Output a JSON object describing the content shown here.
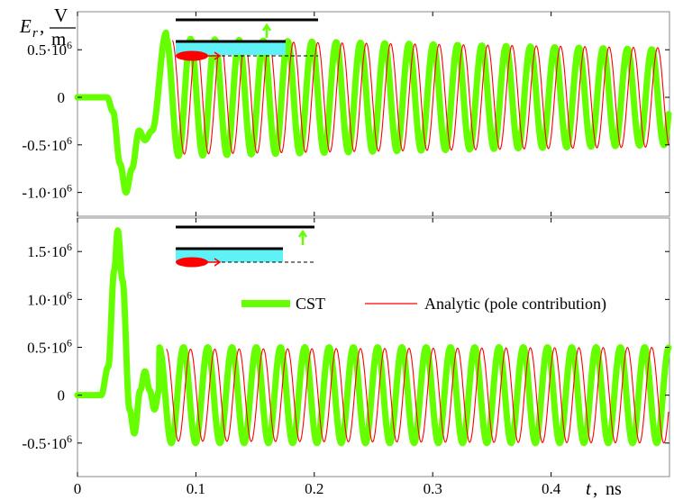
{
  "chart_data": [
    {
      "type": "line",
      "title": "",
      "ylabel": "E_r, V/m",
      "ylabel_parts": {
        "symbol": "E",
        "subscript": "r",
        "unit_num": "V",
        "unit_den": "m",
        "comma": ","
      },
      "xlim": [
        0,
        0.5
      ],
      "ylim": [
        -1.25,
        0.9
      ],
      "yticks": [
        {
          "value": 0.5,
          "mant": "0.5",
          "exp": "6"
        },
        {
          "value": 0,
          "mant": "0",
          "exp": ""
        },
        {
          "value": -0.5,
          "mant": "-0.5",
          "exp": "6"
        },
        {
          "value": -1.0,
          "mant": "-1.0",
          "exp": "6"
        }
      ],
      "series": [
        {
          "name": "CST",
          "color": "#66ff00",
          "keyframes": [
            [
              0,
              0
            ],
            [
              0.025,
              0
            ],
            [
              0.03,
              -0.15
            ],
            [
              0.036,
              -0.7
            ],
            [
              0.041,
              -1.0
            ],
            [
              0.046,
              -0.75
            ],
            [
              0.052,
              -0.35
            ],
            [
              0.057,
              -0.45
            ],
            [
              0.063,
              -0.35
            ],
            [
              0.075,
              0.68
            ]
          ],
          "osc": {
            "t0": 0.075,
            "t1": 0.5,
            "period": 0.0205,
            "amp_start": 0.62,
            "amp_end": 0.5,
            "offset": 0.0
          }
        },
        {
          "name": "Analytic (pole contribution)",
          "color": "#ff0000",
          "keyframes": [],
          "osc": {
            "t0": 0.08,
            "t1": 0.5,
            "period": 0.0205,
            "amp_start": 0.6,
            "amp_end": 0.52,
            "offset": 0.0
          }
        }
      ],
      "inset": {
        "desc": "waveguide geometry schematic"
      }
    },
    {
      "type": "line",
      "title": "",
      "xlabel": "t, ns",
      "xlabel_parts": {
        "symbol": "t",
        "comma": ",",
        "unit": "ns"
      },
      "xlim": [
        0,
        0.5
      ],
      "ylim": [
        -0.85,
        1.85
      ],
      "xticks": [
        0,
        0.1,
        0.2,
        0.3,
        0.4
      ],
      "xtick_labels": [
        "0",
        "0.1",
        "0.2",
        "0.3",
        "0.4"
      ],
      "yticks": [
        {
          "value": 1.5,
          "mant": "1.5",
          "exp": "6"
        },
        {
          "value": 1.0,
          "mant": "1.0",
          "exp": "6"
        },
        {
          "value": 0.5,
          "mant": "0.5",
          "exp": "6"
        },
        {
          "value": 0,
          "mant": "0",
          "exp": ""
        },
        {
          "value": -0.5,
          "mant": "-0.5",
          "exp": "6"
        }
      ],
      "series": [
        {
          "name": "CST",
          "color": "#66ff00",
          "keyframes": [
            [
              0,
              0
            ],
            [
              0.02,
              0
            ],
            [
              0.026,
              0.3
            ],
            [
              0.031,
              1.3
            ],
            [
              0.034,
              1.72
            ],
            [
              0.038,
              1.2
            ],
            [
              0.044,
              -0.15
            ],
            [
              0.048,
              -0.4
            ],
            [
              0.053,
              0.05
            ],
            [
              0.057,
              0.25
            ],
            [
              0.061,
              0.05
            ],
            [
              0.065,
              -0.15
            ],
            [
              0.069,
              0.05
            ]
          ],
          "osc": {
            "t0": 0.069,
            "t1": 0.5,
            "period": 0.0205,
            "amp_start": 0.5,
            "amp_end": 0.5,
            "offset": 0.0
          }
        },
        {
          "name": "Analytic (pole contribution)",
          "color": "#ff0000",
          "keyframes": [],
          "osc": {
            "t0": 0.075,
            "t1": 0.5,
            "period": 0.0205,
            "amp_start": 0.48,
            "amp_end": 0.5,
            "offset": 0.0
          }
        }
      ],
      "inset": {
        "desc": "waveguide geometry schematic"
      }
    }
  ],
  "legend": {
    "items": [
      {
        "label": "CST",
        "color": "#66ff00"
      },
      {
        "label": "Analytic (pole contribution)",
        "color": "#ff0000"
      }
    ],
    "placement": "top-center of lower panel"
  },
  "colors": {
    "cst": "#66ff00",
    "analytic": "#ff0000",
    "dielectric": "#5ef2f6",
    "bunch": "#ff0000",
    "arrow": "#66ff00"
  }
}
